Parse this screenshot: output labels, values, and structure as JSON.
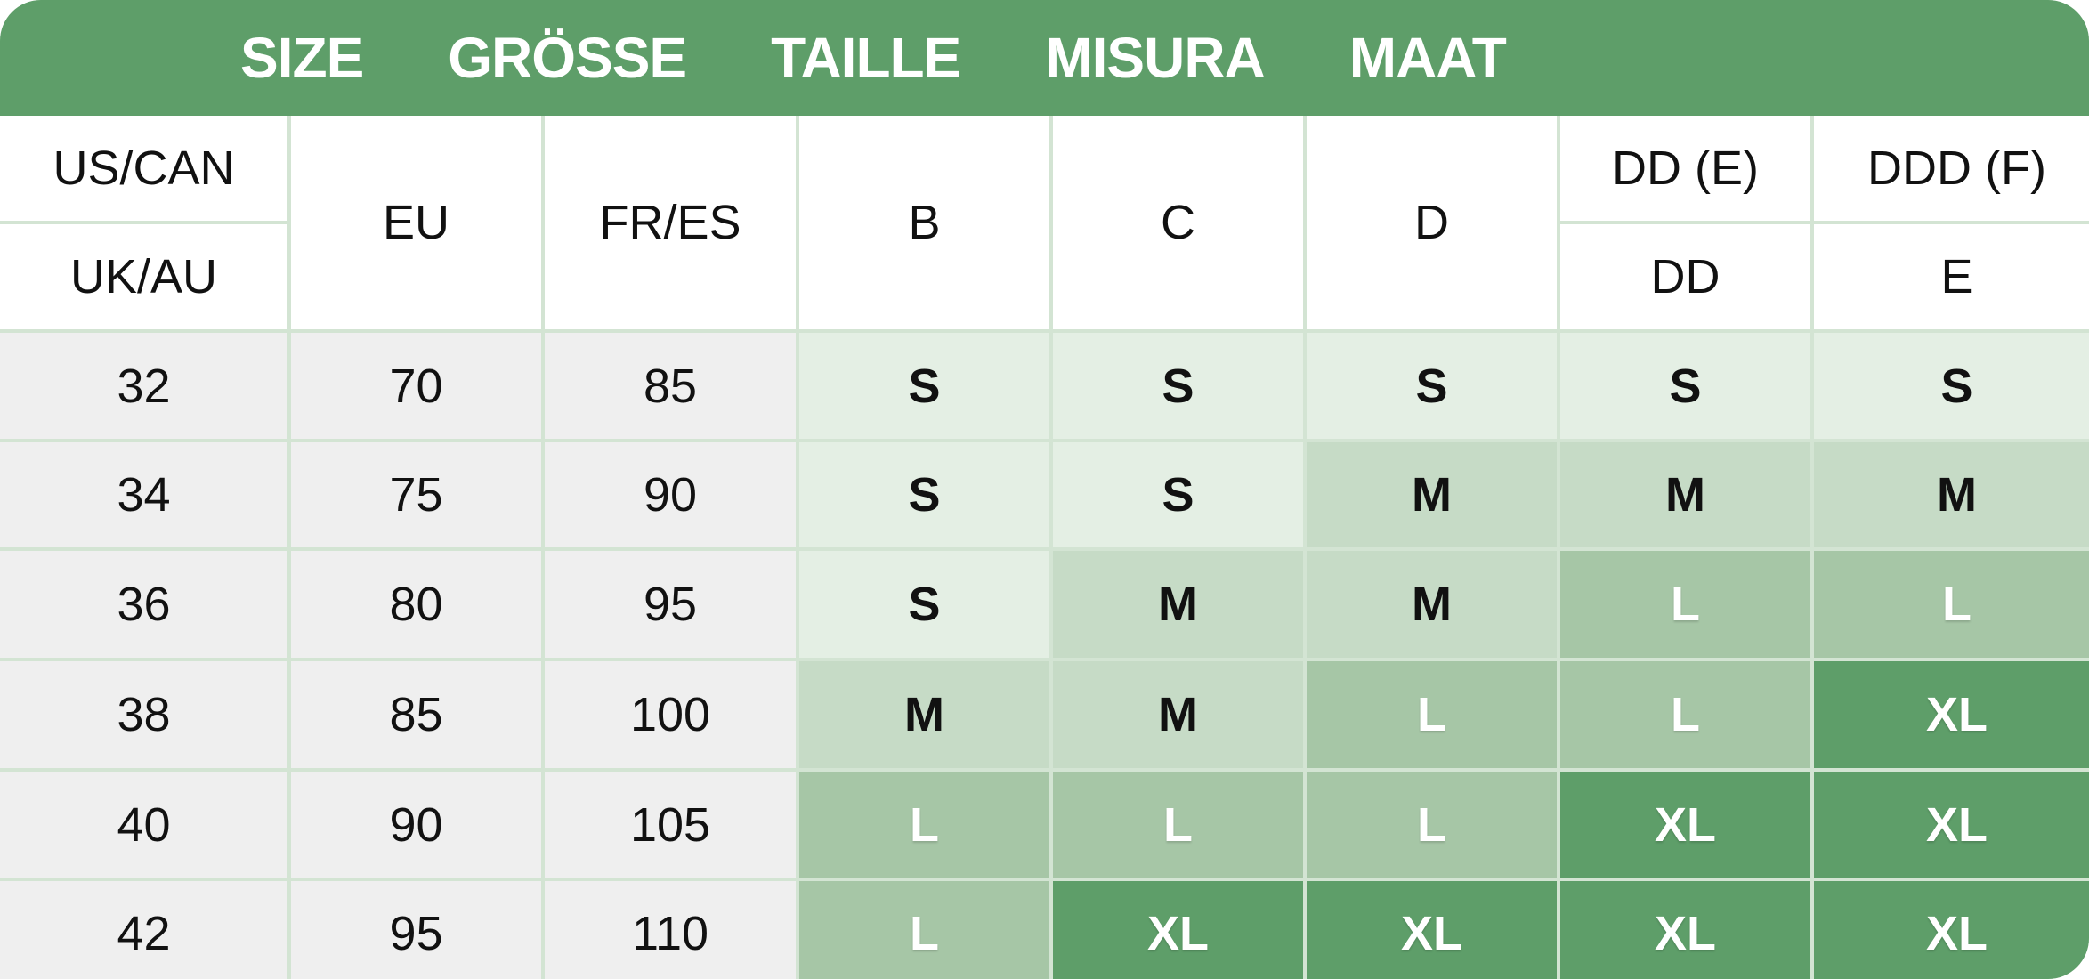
{
  "title_band": [
    "SIZE",
    "GRÖSSE",
    "TAILLE",
    "MISURA",
    "MAAT"
  ],
  "columns": {
    "us_can": "US/CAN",
    "uk_au": "UK/AU",
    "eu": "EU",
    "fr_es": "FR/ES",
    "b": "B",
    "c": "C",
    "d": "D",
    "dd_e_us": "DD (E)",
    "dd_uk": "DD",
    "ddd_f_us": "DDD (F)",
    "e_uk": "E"
  },
  "rows": [
    {
      "band": "32",
      "eu": "70",
      "fr_es": "85",
      "sizes": [
        "S",
        "S",
        "S",
        "S",
        "S"
      ]
    },
    {
      "band": "34",
      "eu": "75",
      "fr_es": "90",
      "sizes": [
        "S",
        "S",
        "M",
        "M",
        "M"
      ]
    },
    {
      "band": "36",
      "eu": "80",
      "fr_es": "95",
      "sizes": [
        "S",
        "M",
        "M",
        "L",
        "L"
      ]
    },
    {
      "band": "38",
      "eu": "85",
      "fr_es": "100",
      "sizes": [
        "M",
        "M",
        "L",
        "L",
        "XL"
      ]
    },
    {
      "band": "40",
      "eu": "90",
      "fr_es": "105",
      "sizes": [
        "L",
        "L",
        "L",
        "XL",
        "XL"
      ]
    },
    {
      "band": "42",
      "eu": "95",
      "fr_es": "110",
      "sizes": [
        "L",
        "XL",
        "XL",
        "XL",
        "XL"
      ]
    }
  ],
  "size_colors": {
    "S": "#e4efe4",
    "M": "#c6dbc6",
    "L": "#a6c6a6",
    "XL": "#5e9e69"
  },
  "header_color": "#5e9e69"
}
